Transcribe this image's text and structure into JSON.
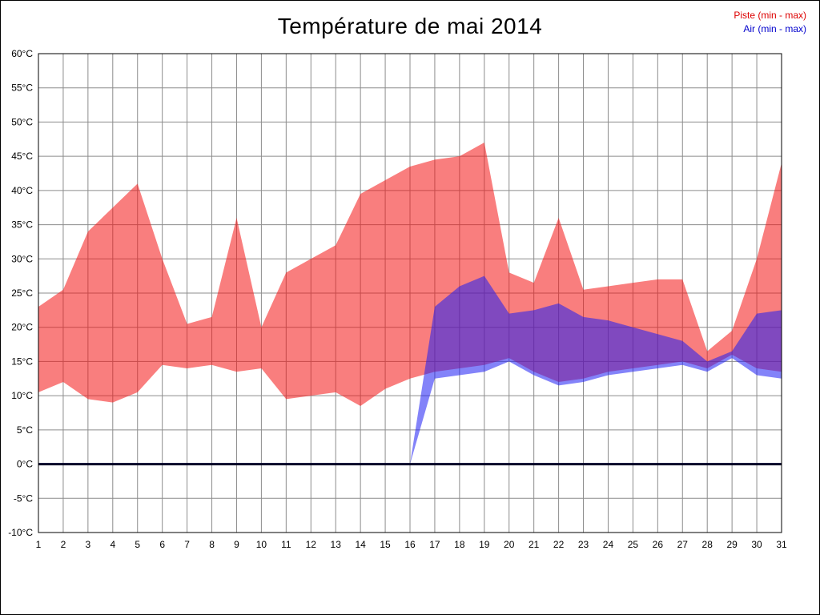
{
  "page": {
    "background": "#ffffff"
  },
  "chart_data": {
    "type": "area",
    "title": "Température de mai 2014",
    "subtitle": "",
    "legend": [
      {
        "label": "Piste (min - max)",
        "color": "#dd0000"
      },
      {
        "label": "Air (min - max)",
        "color": "#0000cc"
      }
    ],
    "legend_position": "top-right",
    "grid": "on",
    "grid_color": "#8c8c8c",
    "zero_line_color": "#000028",
    "ylim": [
      -10,
      60
    ],
    "ytick_step": 5,
    "y_tick_labels": [
      "60°C",
      "55°C",
      "50°C",
      "45°C",
      "40°C",
      "35°C",
      "30°C",
      "25°C",
      "20°C",
      "15°C",
      "10°C",
      "5°C",
      "0°C",
      "-5°C",
      "-10°C"
    ],
    "x_tick_labels": [
      "1",
      "2",
      "3",
      "4",
      "5",
      "6",
      "7",
      "8",
      "9",
      "10",
      "11",
      "12",
      "13",
      "14",
      "15",
      "16",
      "17",
      "18",
      "19",
      "20",
      "21",
      "22",
      "23",
      "24",
      "25",
      "26",
      "27",
      "28",
      "29",
      "30",
      "31"
    ],
    "series": [
      {
        "name": "Piste (min - max)",
        "fill": "rgba(244,20,20,0.55)",
        "min": [
          10.5,
          12,
          9.5,
          9,
          10.5,
          14.5,
          14,
          14.5,
          13.5,
          14,
          9.5,
          10,
          10.5,
          8.5,
          11,
          12.5,
          13.5,
          14,
          14.5,
          15.5,
          13.5,
          12,
          12.5,
          13.5,
          14,
          14.5,
          15,
          14,
          16,
          14,
          13.5
        ],
        "max": [
          23,
          25.5,
          34,
          37.5,
          41,
          30,
          20.5,
          21.5,
          36,
          20,
          28,
          30,
          32,
          39.5,
          41.5,
          43.5,
          44.5,
          45,
          47,
          28,
          26.5,
          36,
          25.5,
          26,
          26.5,
          27,
          27,
          16.5,
          19.5,
          30,
          44
        ]
      },
      {
        "name": "Air (min - max)",
        "fill": "rgba(30,30,244,0.55)",
        "min": [
          0,
          0,
          0,
          0,
          0,
          0,
          0,
          0,
          0,
          0,
          0,
          0,
          0,
          0,
          0,
          0,
          12.5,
          13,
          13.5,
          15,
          13,
          11.5,
          12,
          13,
          13.5,
          14,
          14.5,
          13.5,
          15.5,
          13,
          12.5
        ],
        "max": [
          0,
          0,
          0,
          0,
          0,
          0,
          0,
          0,
          0,
          0,
          0,
          0,
          0,
          0,
          0,
          0,
          23,
          26,
          27.5,
          22,
          22.5,
          23.5,
          21.5,
          21,
          20,
          19,
          18,
          15,
          16.5,
          22,
          22.5
        ]
      }
    ]
  }
}
